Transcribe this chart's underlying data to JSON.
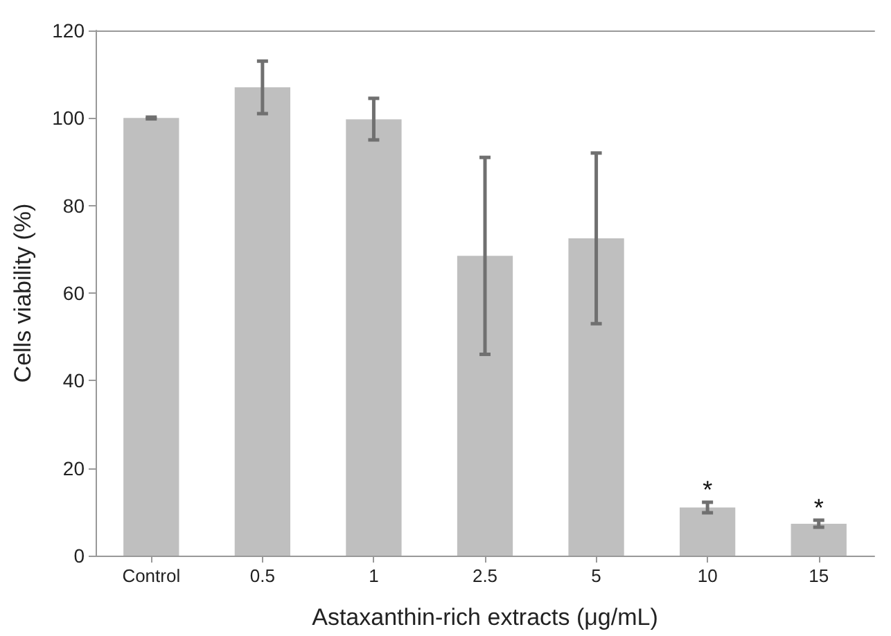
{
  "chart_data": {
    "type": "bar",
    "xlabel": "Astaxanthin-rich extracts (μg/mL)",
    "ylabel": "Cells viability (%)",
    "categories": [
      "Control",
      "0.5",
      "1",
      "2.5",
      "5",
      "10",
      "15"
    ],
    "values": [
      100,
      107,
      99.7,
      68.5,
      72.5,
      11,
      7.3
    ],
    "errors": [
      0.2,
      6,
      [
        95,
        104.5
      ],
      [
        46,
        91
      ],
      [
        53,
        92
      ],
      1.2,
      0.8
    ],
    "color": "#bfbfbf",
    "ylim": [
      0,
      120
    ],
    "yticks": [
      0,
      20,
      40,
      60,
      80,
      100,
      120
    ],
    "grid": false,
    "annotations": [
      {
        "text": "*",
        "x": "10",
        "y": 12.2
      },
      {
        "text": "*",
        "x": "15",
        "y": 8.1
      }
    ]
  }
}
